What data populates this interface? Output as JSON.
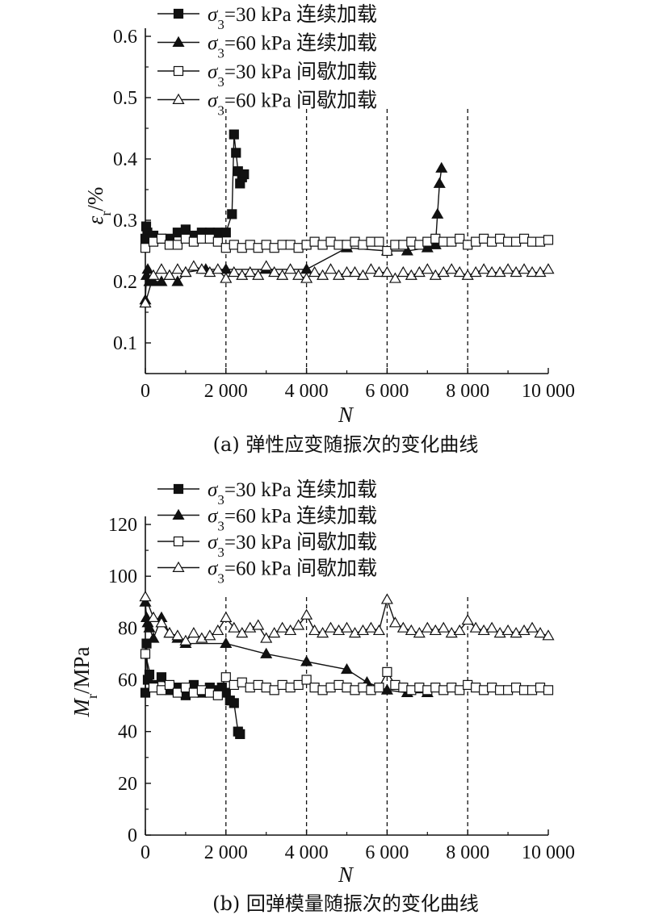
{
  "charts": [
    {
      "id": "a",
      "caption": "(a) 弹性应变随振次的变化曲线",
      "xlabel": "N",
      "ylabel_main": "ε",
      "ylabel_sub": "r",
      "ylabel_tail": "/%",
      "xticks": [
        "0",
        "2 000",
        "4 000",
        "6 000",
        "8 000",
        "10 000"
      ],
      "yticks": [
        "0.1",
        "0.2",
        "0.3",
        "0.4",
        "0.5",
        "0.6"
      ],
      "legend": [
        {
          "pre": "σ",
          "sub": "3",
          "post": "=30 kPa 连续加载"
        },
        {
          "pre": "σ",
          "sub": "3",
          "post": "=60 kPa 连续加载"
        },
        {
          "pre": "σ",
          "sub": "3",
          "post": "=30 kPa 间歇加载"
        },
        {
          "pre": "σ",
          "sub": "3",
          "post": "=60 kPa 间歇加载"
        }
      ]
    },
    {
      "id": "b",
      "caption": "(b) 回弹模量随振次的变化曲线",
      "xlabel": "N",
      "ylabel_main": "M",
      "ylabel_sub": "r",
      "ylabel_tail": "/MPa",
      "xticks": [
        "0",
        "2 000",
        "4 000",
        "6 000",
        "8 000",
        "10 000"
      ],
      "yticks": [
        "0",
        "20",
        "40",
        "60",
        "80",
        "100",
        "120"
      ],
      "legend": [
        {
          "pre": "σ",
          "sub": "3",
          "post": "=30 kPa 连续加载"
        },
        {
          "pre": "σ",
          "sub": "3",
          "post": "=60 kPa 连续加载"
        },
        {
          "pre": "σ",
          "sub": "3",
          "post": "=30 kPa 间歇加载"
        },
        {
          "pre": "σ",
          "sub": "3",
          "post": "=60 kPa 间歇加载"
        }
      ]
    }
  ],
  "chart_data": [
    {
      "type": "line",
      "title": "(a) 弹性应变随振次的变化曲线",
      "xlabel": "N",
      "ylabel": "εr/%",
      "xlim": [
        0,
        10000
      ],
      "ylim": [
        0.05,
        0.6
      ],
      "grid": false,
      "legend_position": "top-left",
      "vlines": [
        2000,
        4000,
        6000,
        8000
      ],
      "series": [
        {
          "name": "σ3=30 kPa 连续加载",
          "marker": "filled-square",
          "x": [
            0,
            20,
            50,
            100,
            200,
            400,
            600,
            800,
            1000,
            1200,
            1400,
            1600,
            1800,
            2000,
            2150,
            2200,
            2250,
            2300,
            2350,
            2400,
            2450
          ],
          "y": [
            0.27,
            0.29,
            0.28,
            0.27,
            0.275,
            0.27,
            0.27,
            0.28,
            0.285,
            0.275,
            0.28,
            0.28,
            0.28,
            0.28,
            0.31,
            0.44,
            0.41,
            0.38,
            0.36,
            0.37,
            0.375
          ]
        },
        {
          "name": "σ3=60 kPa 连续加载",
          "marker": "filled-triangle",
          "x": [
            0,
            30,
            60,
            100,
            200,
            400,
            600,
            800,
            1000,
            1500,
            2000,
            3000,
            4000,
            5000,
            6000,
            6500,
            7000,
            7200,
            7250,
            7300,
            7350
          ],
          "y": [
            0.17,
            0.21,
            0.22,
            0.2,
            0.2,
            0.2,
            0.21,
            0.2,
            0.215,
            0.22,
            0.22,
            0.22,
            0.22,
            0.255,
            0.25,
            0.25,
            0.255,
            0.26,
            0.31,
            0.36,
            0.385
          ]
        },
        {
          "name": "σ3=30 kPa 间歇加载",
          "marker": "open-square",
          "x": [
            0,
            200,
            400,
            600,
            800,
            1000,
            1200,
            1400,
            1600,
            1800,
            2000,
            2200,
            2400,
            2600,
            2800,
            3000,
            3200,
            3400,
            3600,
            3800,
            4000,
            4200,
            4400,
            4600,
            4800,
            5000,
            5200,
            5400,
            5600,
            5800,
            6000,
            6200,
            6400,
            6600,
            6800,
            7000,
            7200,
            7400,
            7600,
            7800,
            8000,
            8200,
            8400,
            8600,
            8800,
            9000,
            9200,
            9400,
            9600,
            9800,
            10000
          ],
          "y": [
            0.255,
            0.265,
            0.27,
            0.26,
            0.26,
            0.27,
            0.265,
            0.27,
            0.27,
            0.265,
            0.255,
            0.26,
            0.255,
            0.26,
            0.255,
            0.26,
            0.255,
            0.26,
            0.26,
            0.255,
            0.26,
            0.265,
            0.26,
            0.265,
            0.26,
            0.26,
            0.265,
            0.26,
            0.265,
            0.265,
            0.25,
            0.26,
            0.26,
            0.265,
            0.26,
            0.265,
            0.27,
            0.265,
            0.265,
            0.27,
            0.26,
            0.265,
            0.27,
            0.265,
            0.27,
            0.265,
            0.265,
            0.27,
            0.265,
            0.265,
            0.268
          ]
        },
        {
          "name": "σ3=60 kPa 间歇加载",
          "marker": "open-triangle",
          "x": [
            0,
            200,
            400,
            600,
            800,
            1000,
            1200,
            1400,
            1600,
            1800,
            2000,
            2200,
            2400,
            2600,
            2800,
            3000,
            3200,
            3400,
            3600,
            3800,
            4000,
            4200,
            4400,
            4600,
            4800,
            5000,
            5200,
            5400,
            5600,
            5800,
            6000,
            6200,
            6400,
            6600,
            6800,
            7000,
            7200,
            7400,
            7600,
            7800,
            8000,
            8200,
            8400,
            8600,
            8800,
            9000,
            9200,
            9400,
            9600,
            9800,
            10000
          ],
          "y": [
            0.165,
            0.21,
            0.22,
            0.21,
            0.22,
            0.215,
            0.225,
            0.22,
            0.215,
            0.22,
            0.205,
            0.215,
            0.21,
            0.215,
            0.21,
            0.225,
            0.215,
            0.21,
            0.22,
            0.21,
            0.205,
            0.215,
            0.21,
            0.22,
            0.21,
            0.215,
            0.215,
            0.21,
            0.22,
            0.215,
            0.215,
            0.205,
            0.215,
            0.21,
            0.215,
            0.22,
            0.21,
            0.215,
            0.22,
            0.215,
            0.21,
            0.215,
            0.22,
            0.215,
            0.215,
            0.22,
            0.215,
            0.22,
            0.215,
            0.215,
            0.22
          ]
        }
      ]
    },
    {
      "type": "line",
      "title": "(b) 回弹模量随振次的变化曲线",
      "xlabel": "N",
      "ylabel": "Mr/MPa",
      "xlim": [
        0,
        10000
      ],
      "ylim": [
        0,
        120
      ],
      "grid": false,
      "legend_position": "top-left",
      "vlines": [
        2000,
        4000,
        6000,
        8000
      ],
      "series": [
        {
          "name": "σ3=30 kPa 连续加载",
          "marker": "filled-square",
          "x": [
            0,
            30,
            60,
            100,
            200,
            400,
            600,
            800,
            1000,
            1200,
            1400,
            1600,
            1800,
            1900,
            2000,
            2100,
            2200,
            2300,
            2350
          ],
          "y": [
            55,
            74,
            60,
            62,
            58,
            61,
            56,
            57,
            54,
            58,
            55,
            57,
            56,
            57,
            55,
            52,
            51,
            40,
            39
          ]
        },
        {
          "name": "σ3=60 kPa 连续加载",
          "marker": "filled-triangle",
          "x": [
            0,
            30,
            60,
            100,
            200,
            400,
            600,
            800,
            1000,
            2000,
            3000,
            4000,
            5000,
            5500,
            6000,
            6500,
            7000
          ],
          "y": [
            90,
            84,
            82,
            80,
            76,
            84,
            78,
            76,
            74,
            74,
            70,
            67,
            64,
            59,
            56,
            55,
            55
          ]
        },
        {
          "name": "σ3=30 kPa 间歇加载",
          "marker": "open-square",
          "x": [
            0,
            200,
            400,
            600,
            800,
            1000,
            1200,
            1400,
            1600,
            1800,
            2000,
            2200,
            2400,
            2600,
            2800,
            3000,
            3200,
            3400,
            3600,
            3800,
            4000,
            4200,
            4400,
            4600,
            4800,
            5000,
            5200,
            5400,
            5600,
            5800,
            6000,
            6200,
            6400,
            6600,
            6800,
            7000,
            7200,
            7400,
            7600,
            7800,
            8000,
            8200,
            8400,
            8600,
            8800,
            9000,
            9200,
            9400,
            9600,
            9800,
            10000
          ],
          "y": [
            70,
            57,
            56,
            58,
            55,
            57,
            55,
            56,
            55,
            54,
            61,
            58,
            59,
            57,
            58,
            57,
            56,
            58,
            57,
            58,
            60,
            57,
            56,
            57,
            58,
            57,
            56,
            57,
            56,
            57,
            63,
            58,
            57,
            56,
            57,
            56,
            57,
            56,
            57,
            56,
            58,
            57,
            56,
            57,
            56,
            56,
            57,
            56,
            56,
            57,
            56
          ]
        },
        {
          "name": "σ3=60 kPa 间歇加载",
          "marker": "open-triangle",
          "x": [
            0,
            200,
            400,
            600,
            800,
            1000,
            1200,
            1400,
            1600,
            1800,
            2000,
            2200,
            2400,
            2600,
            2800,
            3000,
            3200,
            3400,
            3600,
            3800,
            4000,
            4200,
            4400,
            4600,
            4800,
            5000,
            5200,
            5400,
            5600,
            5800,
            6000,
            6200,
            6400,
            6600,
            6800,
            7000,
            7200,
            7400,
            7600,
            7800,
            8000,
            8200,
            8400,
            8600,
            8800,
            9000,
            9200,
            9400,
            9600,
            9800,
            10000
          ],
          "y": [
            92,
            84,
            82,
            78,
            77,
            75,
            78,
            76,
            77,
            79,
            84,
            80,
            78,
            80,
            81,
            76,
            78,
            80,
            79,
            81,
            85,
            79,
            78,
            80,
            79,
            80,
            78,
            79,
            80,
            79,
            91,
            82,
            80,
            79,
            78,
            80,
            79,
            80,
            78,
            79,
            83,
            80,
            79,
            80,
            78,
            79,
            78,
            79,
            80,
            78,
            77
          ]
        }
      ]
    }
  ]
}
